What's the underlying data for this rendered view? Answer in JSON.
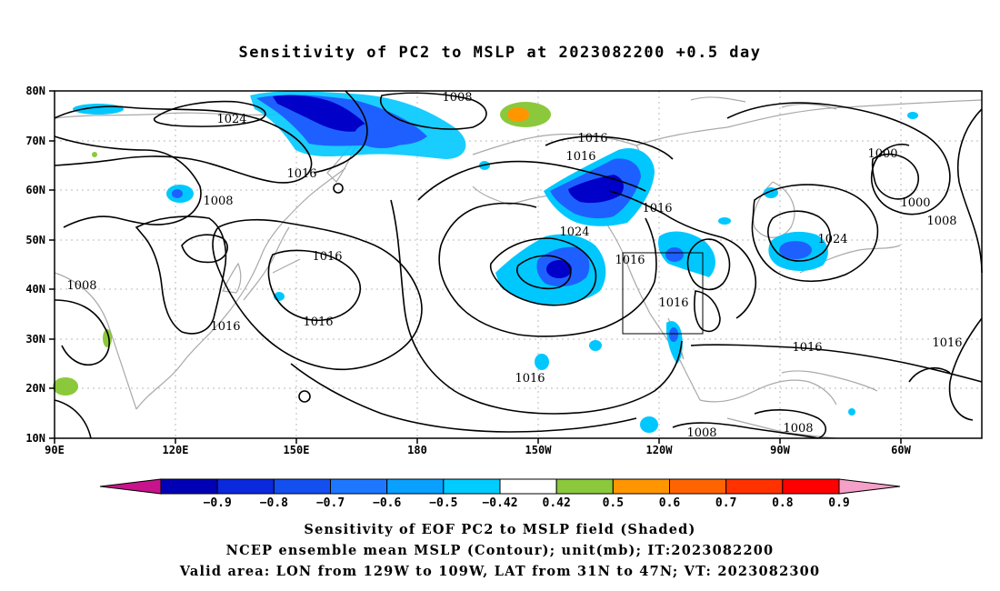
{
  "title": "Sensitivity of PC2 to MSLP at 2023082200 +0.5 day",
  "map": {
    "lat_axis": [
      "80N",
      "70N",
      "60N",
      "50N",
      "40N",
      "30N",
      "20N",
      "10N"
    ],
    "lon_axis": [
      "90E",
      "120E",
      "150E",
      "180",
      "150W",
      "120W",
      "90W",
      "60W"
    ],
    "contour_labels": [
      "1024",
      "1008",
      "1016",
      "1016",
      "1016",
      "1008",
      "1016",
      "1016",
      "1008",
      "1016",
      "1024",
      "1016",
      "1016",
      "1016",
      "1016",
      "1000",
      "1000",
      "1008",
      "1024",
      "1016",
      "1016",
      "1008",
      "1008",
      "1016"
    ],
    "valid_area_box": {
      "lon": [
        "129W",
        "109W"
      ],
      "lat": [
        "31N",
        "47N"
      ]
    },
    "colors": {
      "land_outline": "#a9a9a9",
      "contour": "#000000",
      "grid": "#bbbbbb",
      "shade_neg_strong": "#0000c8",
      "shade_neg_mid": "#1e60ff",
      "shade_neg_light": "#00c8ff",
      "shade_pos_light": "#8cc83c",
      "shade_pos_mid": "#ff9600"
    }
  },
  "colorbar": {
    "colors": [
      "#c8148c",
      "#0000b4",
      "#0a28dc",
      "#1450f0",
      "#1e78ff",
      "#0aa0ff",
      "#00ccff",
      "#ffffff",
      "#8cc83c",
      "#ff9600",
      "#ff6400",
      "#ff3200",
      "#ff0000",
      "#f5a0c8"
    ],
    "labels": [
      "−0.9",
      "−0.8",
      "−0.7",
      "−0.6",
      "−0.5",
      "−0.42",
      "0.42",
      "0.5",
      "0.6",
      "0.7",
      "0.8",
      "0.9"
    ]
  },
  "captions": {
    "line1": "Sensitivity of EOF PC2 to MSLP field (Shaded)",
    "line2": "NCEP ensemble mean MSLP (Contour); unit(mb); IT:2023082200",
    "line3": "Valid area: LON from 129W to 109W, LAT from 31N to 47N; VT: 2023082300"
  }
}
